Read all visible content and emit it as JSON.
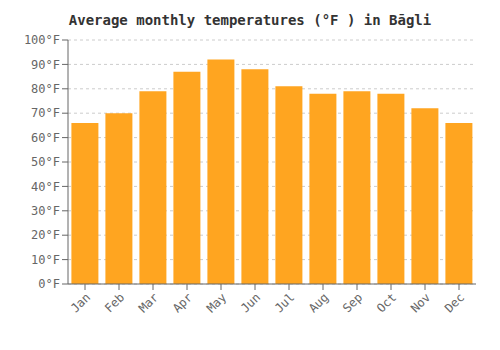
{
  "chart_data": {
    "type": "bar",
    "title": "Average monthly temperatures (°F ) in Bāgli",
    "categories": [
      "Jan",
      "Feb",
      "Mar",
      "Apr",
      "May",
      "Jun",
      "Jul",
      "Aug",
      "Sep",
      "Oct",
      "Nov",
      "Dec"
    ],
    "values": [
      66,
      70,
      79,
      87,
      92,
      88,
      81,
      78,
      79,
      78,
      72,
      66
    ],
    "color": "#FFA520",
    "ylim": [
      0,
      100
    ],
    "yticks": [
      {
        "value": 0,
        "label": "0°F"
      },
      {
        "value": 10,
        "label": "10°F"
      },
      {
        "value": 20,
        "label": "20°F"
      },
      {
        "value": 30,
        "label": "30°F"
      },
      {
        "value": 40,
        "label": "40°F"
      },
      {
        "value": 50,
        "label": "50°F"
      },
      {
        "value": 60,
        "label": "60°F"
      },
      {
        "value": 70,
        "label": "70°F"
      },
      {
        "value": 80,
        "label": "80°F"
      },
      {
        "value": 90,
        "label": "90°F"
      },
      {
        "value": 100,
        "label": "100°F"
      }
    ],
    "grid": true
  }
}
